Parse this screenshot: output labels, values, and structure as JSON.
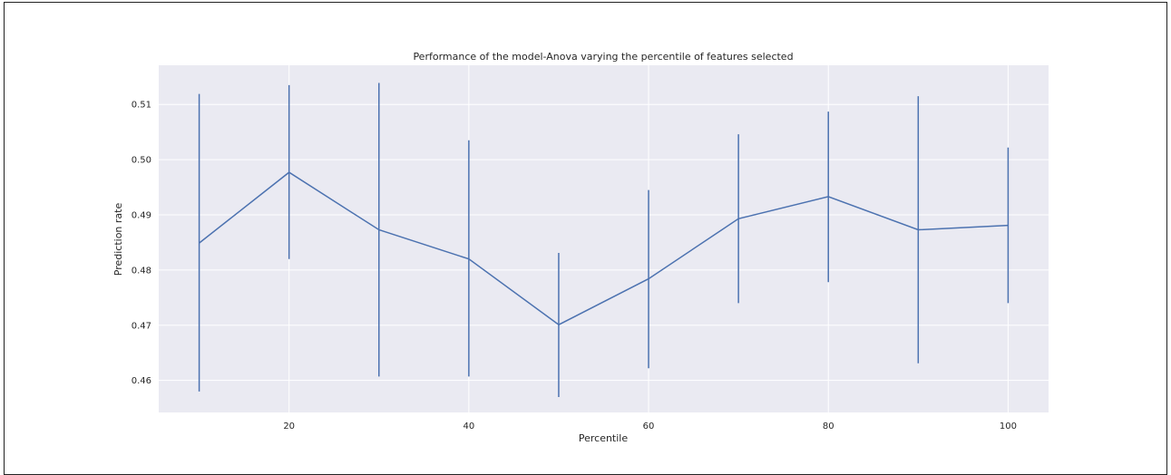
{
  "chart_data": {
    "type": "line",
    "title": "Performance of the model-Anova varying the percentile of features selected",
    "xlabel": "Percentile",
    "ylabel": "Prediction rate",
    "x": [
      10,
      20,
      30,
      40,
      50,
      60,
      70,
      80,
      90,
      100
    ],
    "series": [
      {
        "values": [
          0.4849,
          0.4977,
          0.4873,
          0.482,
          0.4701,
          0.4784,
          0.4893,
          0.4933,
          0.4873,
          0.4881
        ],
        "err_low": [
          0.458,
          0.482,
          0.4607,
          0.4607,
          0.457,
          0.4622,
          0.474,
          0.4778,
          0.4631,
          0.474
        ],
        "err_high": [
          0.5119,
          0.5135,
          0.5139,
          0.5035,
          0.4831,
          0.4945,
          0.5046,
          0.5087,
          0.5115,
          0.5022
        ]
      }
    ],
    "xticks": [
      20,
      40,
      60,
      80,
      100
    ],
    "yticks": [
      0.46,
      0.47,
      0.48,
      0.49,
      0.5,
      0.51
    ],
    "ytick_labels": [
      "0.46",
      "0.47",
      "0.48",
      "0.49",
      "0.50",
      "0.51"
    ],
    "xlim": [
      5.5,
      104.5
    ],
    "ylim": [
      0.4542,
      0.5171
    ],
    "grid": true,
    "line_color": "#4c72b0",
    "plot_bg": "#eaeaf2"
  }
}
